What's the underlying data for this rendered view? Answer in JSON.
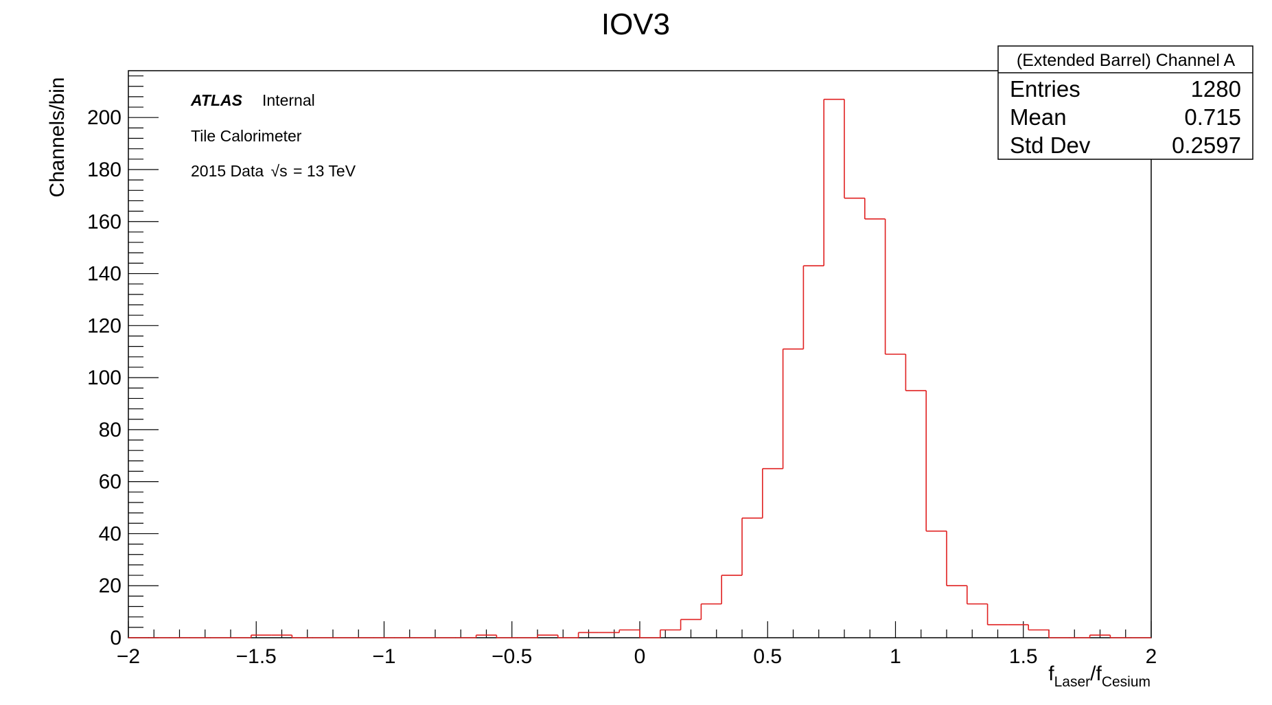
{
  "chart_data": {
    "type": "bar",
    "title": "IOV3",
    "ylabel": "Channels/bin",
    "xlabel": {
      "base1": "f",
      "sub1": "Laser",
      "sep": "/f",
      "sub2": "Cesium"
    },
    "xlim": [
      -2,
      2
    ],
    "ylim": [
      0,
      218
    ],
    "x_ticks": [
      {
        "value": -2,
        "label": "−2"
      },
      {
        "value": -1.5,
        "label": "−1.5"
      },
      {
        "value": -1,
        "label": "−1"
      },
      {
        "value": -0.5,
        "label": "−0.5"
      },
      {
        "value": 0,
        "label": "0"
      },
      {
        "value": 0.5,
        "label": "0.5"
      },
      {
        "value": 1,
        "label": "1"
      },
      {
        "value": 1.5,
        "label": "1.5"
      },
      {
        "value": 2,
        "label": "2"
      }
    ],
    "y_ticks": [
      {
        "value": 0,
        "label": "0"
      },
      {
        "value": 20,
        "label": "20"
      },
      {
        "value": 40,
        "label": "40"
      },
      {
        "value": 60,
        "label": "60"
      },
      {
        "value": 80,
        "label": "80"
      },
      {
        "value": 100,
        "label": "100"
      },
      {
        "value": 120,
        "label": "120"
      },
      {
        "value": 140,
        "label": "140"
      },
      {
        "value": 160,
        "label": "160"
      },
      {
        "value": 180,
        "label": "180"
      },
      {
        "value": 200,
        "label": "200"
      }
    ],
    "bin_width": 0.08,
    "bin_start": -2,
    "bin_values": [
      0,
      0,
      0,
      0,
      0,
      0,
      1,
      1,
      0,
      0,
      0,
      0,
      0,
      0,
      0,
      0,
      0,
      1,
      0,
      0,
      1,
      0,
      2,
      2,
      3,
      0,
      3,
      7,
      13,
      24,
      46,
      65,
      111,
      143,
      207,
      169,
      161,
      109,
      95,
      41,
      20,
      13,
      5,
      5,
      3,
      0,
      0,
      1,
      0,
      0
    ],
    "line_color": "#e02020",
    "grid": false,
    "legend": {
      "position": "top-right",
      "header": "(Extended Barrel) Channel A",
      "rows": [
        {
          "key": "Entries",
          "value": "1280"
        },
        {
          "key": "Mean",
          "value": "0.715"
        },
        {
          "key": "Std Dev",
          "value": "0.2597"
        }
      ]
    },
    "annotations": {
      "experiment": "ATLAS",
      "status": "Internal",
      "detector": "Tile Calorimeter",
      "dataset_prefix": "2015 Data",
      "root_symbol": "√s",
      "dataset_suffix": "= 13 TeV"
    }
  }
}
